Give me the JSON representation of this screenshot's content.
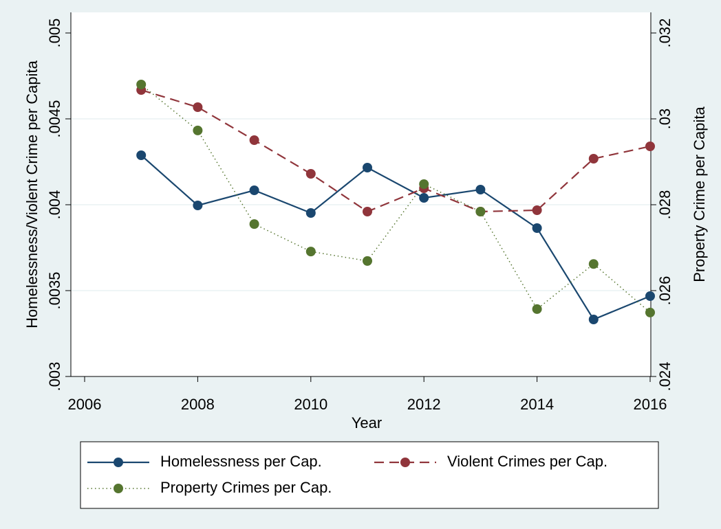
{
  "chart_data": {
    "type": "line",
    "x_label": "Year",
    "y_label": "Homelessness/Violent Crime per Capita",
    "y2_label": "Property Crime per Capita",
    "x": [
      2007,
      2008,
      2009,
      2010,
      2011,
      2012,
      2013,
      2014,
      2015,
      2016
    ],
    "series": [
      {
        "name": "Homelessness per Cap.",
        "color": "#1a476f",
        "style": "solid",
        "values": [
          0.004288,
          0.003996,
          0.004084,
          0.003952,
          0.004216,
          0.00404,
          0.004088,
          0.003864,
          0.003332,
          0.003468
        ]
      },
      {
        "name": "Violent Crimes per Cap.",
        "color": "#90353b",
        "style": "dashed",
        "values": [
          0.004668,
          0.004568,
          0.004376,
          0.00418,
          0.00396,
          0.004096,
          0.00396,
          0.003968,
          0.004268,
          0.00434
        ]
      },
      {
        "name": "Property Crimes per Cap.",
        "color": "#55752f",
        "style": "dotted",
        "axis": "y2",
        "values": [
          0.0308,
          0.02973,
          0.02755,
          0.02691,
          0.02669,
          0.02848,
          0.02784,
          0.02557,
          0.02662,
          0.02549
        ]
      }
    ],
    "xlim": [
      2006,
      2016
    ],
    "xticks": [
      2006,
      2008,
      2010,
      2012,
      2014,
      2016
    ],
    "ylim": [
      0.003,
      0.005
    ],
    "yticks": [
      {
        "value": 0.003,
        "label": ".003"
      },
      {
        "value": 0.0035,
        "label": ".0035"
      },
      {
        "value": 0.004,
        "label": ".004"
      },
      {
        "value": 0.0045,
        "label": ".0045"
      },
      {
        "value": 0.005,
        "label": ".005"
      }
    ],
    "y2lim": [
      0.024,
      0.032
    ],
    "y2ticks": [
      {
        "value": 0.024,
        "label": ".024"
      },
      {
        "value": 0.026,
        "label": ".026"
      },
      {
        "value": 0.028,
        "label": ".028"
      },
      {
        "value": 0.03,
        "label": ".03"
      },
      {
        "value": 0.032,
        "label": ".032"
      }
    ],
    "grid": true,
    "legend": "bottom"
  }
}
